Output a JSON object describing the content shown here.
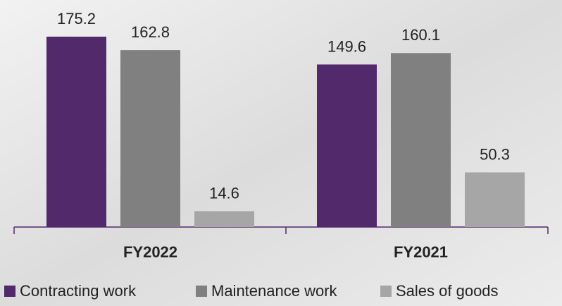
{
  "chart_data": {
    "type": "bar",
    "categories": [
      "FY2022",
      "FY2021"
    ],
    "series": [
      {
        "name": "Contracting work",
        "color": "#52296a",
        "values": [
          175.2,
          149.6
        ]
      },
      {
        "name": "Maintenance work",
        "color": "#808080",
        "values": [
          162.8,
          160.1
        ]
      },
      {
        "name": "Sales of goods",
        "color": "#a6a6a6",
        "values": [
          14.6,
          50.3
        ]
      }
    ]
  }
}
